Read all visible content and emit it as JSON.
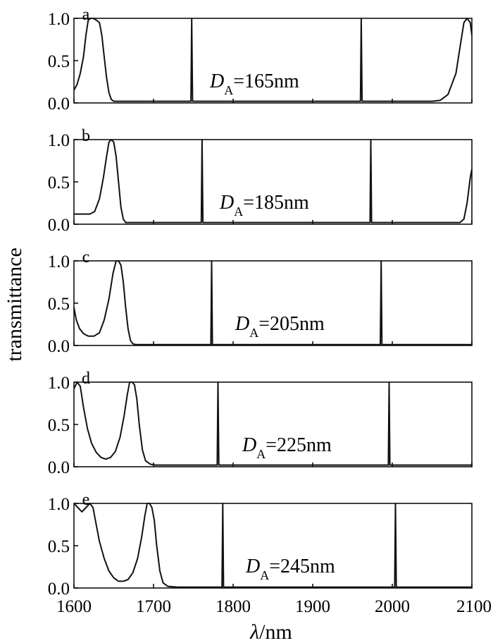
{
  "chart_data": {
    "type": "line",
    "ylabel": "transmittance",
    "xlabel_symbol": "λ",
    "xlabel_unit": "/nm",
    "xlim": [
      1600,
      2100
    ],
    "ylim": [
      0,
      1
    ],
    "xticks": [
      "1600",
      "1700",
      "1800",
      "1900",
      "2000",
      "2100"
    ],
    "yticks": [
      "0.0",
      "0.5",
      "1.0"
    ],
    "panels": [
      {
        "label": "a",
        "annotation": {
          "symbol": "D",
          "sub": "A",
          "text": "=165nm"
        },
        "series": [
          {
            "x": [
              1600,
              1604,
              1608,
              1612,
              1615,
              1618,
              1621,
              1624,
              1628,
              1632,
              1635,
              1638,
              1641,
              1644,
              1647,
              1650,
              1655,
              1660,
              1680,
              1747,
              1748,
              1749,
              1800,
              1900,
              1960,
              1961,
              1962,
              2000,
              2040,
              2050,
              2060,
              2070,
              2080,
              2085,
              2090,
              2094,
              2098,
              2100
            ],
            "y": [
              0.15,
              0.22,
              0.35,
              0.55,
              0.8,
              0.98,
              1.0,
              1.0,
              0.98,
              0.95,
              0.8,
              0.55,
              0.3,
              0.12,
              0.04,
              0.02,
              0.02,
              0.02,
              0.02,
              0.02,
              1.0,
              0.02,
              0.02,
              0.02,
              0.02,
              1.0,
              0.02,
              0.02,
              0.02,
              0.02,
              0.03,
              0.1,
              0.35,
              0.65,
              0.95,
              1.0,
              0.95,
              0.8
            ]
          }
        ]
      },
      {
        "label": "b",
        "annotation": {
          "symbol": "D",
          "sub": "A",
          "text": "=185nm"
        },
        "series": [
          {
            "x": [
              1600,
              1610,
              1620,
              1626,
              1632,
              1637,
              1641,
              1644,
              1647,
              1650,
              1653,
              1656,
              1659,
              1662,
              1665,
              1670,
              1680,
              1760,
              1761,
              1762,
              1850,
              1972,
              1973,
              1974,
              2050,
              2085,
              2090,
              2094,
              2098,
              2100
            ],
            "y": [
              0.12,
              0.12,
              0.12,
              0.15,
              0.3,
              0.55,
              0.8,
              0.97,
              1.0,
              0.97,
              0.8,
              0.5,
              0.2,
              0.06,
              0.02,
              0.02,
              0.02,
              0.02,
              1.0,
              0.02,
              0.02,
              0.02,
              1.0,
              0.02,
              0.02,
              0.02,
              0.06,
              0.25,
              0.55,
              0.65
            ]
          }
        ]
      },
      {
        "label": "c",
        "annotation": {
          "symbol": "D",
          "sub": "A",
          "text": "=205nm"
        },
        "series": [
          {
            "x": [
              1600,
              1603,
              1607,
              1612,
              1618,
              1625,
              1632,
              1638,
              1644,
              1649,
              1653,
              1656,
              1659,
              1662,
              1665,
              1668,
              1671,
              1674,
              1678,
              1682,
              1700,
              1772,
              1773,
              1774,
              1900,
              1985,
              1986,
              1987,
              2100
            ],
            "y": [
              0.45,
              0.3,
              0.2,
              0.14,
              0.11,
              0.11,
              0.15,
              0.3,
              0.55,
              0.85,
              1.0,
              1.0,
              0.95,
              0.75,
              0.45,
              0.2,
              0.06,
              0.02,
              0.01,
              0.01,
              0.01,
              0.01,
              1.0,
              0.01,
              0.01,
              0.01,
              1.0,
              0.01,
              0.01
            ]
          }
        ]
      },
      {
        "label": "d",
        "annotation": {
          "symbol": "D",
          "sub": "A",
          "text": "=225nm"
        },
        "series": [
          {
            "x": [
              1600,
              1604,
              1608,
              1612,
              1617,
              1622,
              1628,
              1634,
              1640,
              1646,
              1652,
              1658,
              1663,
              1667,
              1670,
              1673,
              1676,
              1679,
              1682,
              1686,
              1690,
              1696,
              1702,
              1710,
              1780,
              1781,
              1782,
              1900,
              1995,
              1996,
              1997,
              2100
            ],
            "y": [
              0.92,
              1.0,
              0.95,
              0.7,
              0.45,
              0.28,
              0.17,
              0.11,
              0.09,
              0.11,
              0.18,
              0.35,
              0.6,
              0.85,
              1.0,
              1.0,
              0.97,
              0.8,
              0.5,
              0.2,
              0.07,
              0.03,
              0.02,
              0.02,
              0.02,
              1.0,
              0.02,
              0.02,
              0.02,
              1.0,
              0.02,
              0.02
            ]
          }
        ]
      },
      {
        "label": "e",
        "annotation": {
          "symbol": "D",
          "sub": "A",
          "text": "=245nm"
        },
        "series": [
          {
            "x": [
              1600,
              1605,
              1610,
              1615,
              1620,
              1624,
              1628,
              1632,
              1638,
              1644,
              1650,
              1656,
              1662,
              1668,
              1674,
              1680,
              1685,
              1689,
              1692,
              1695,
              1698,
              1701,
              1704,
              1708,
              1712,
              1718,
              1730,
              1786,
              1787,
              1788,
              1900,
              2003,
              2004,
              2005,
              2100
            ],
            "y": [
              1.0,
              0.95,
              0.9,
              0.95,
              1.0,
              0.95,
              0.75,
              0.55,
              0.35,
              0.2,
              0.12,
              0.08,
              0.08,
              0.1,
              0.18,
              0.35,
              0.6,
              0.85,
              1.0,
              1.0,
              0.95,
              0.8,
              0.5,
              0.2,
              0.06,
              0.02,
              0.01,
              0.01,
              1.0,
              0.01,
              0.01,
              0.01,
              1.0,
              0.01,
              0.01
            ]
          }
        ]
      }
    ]
  }
}
